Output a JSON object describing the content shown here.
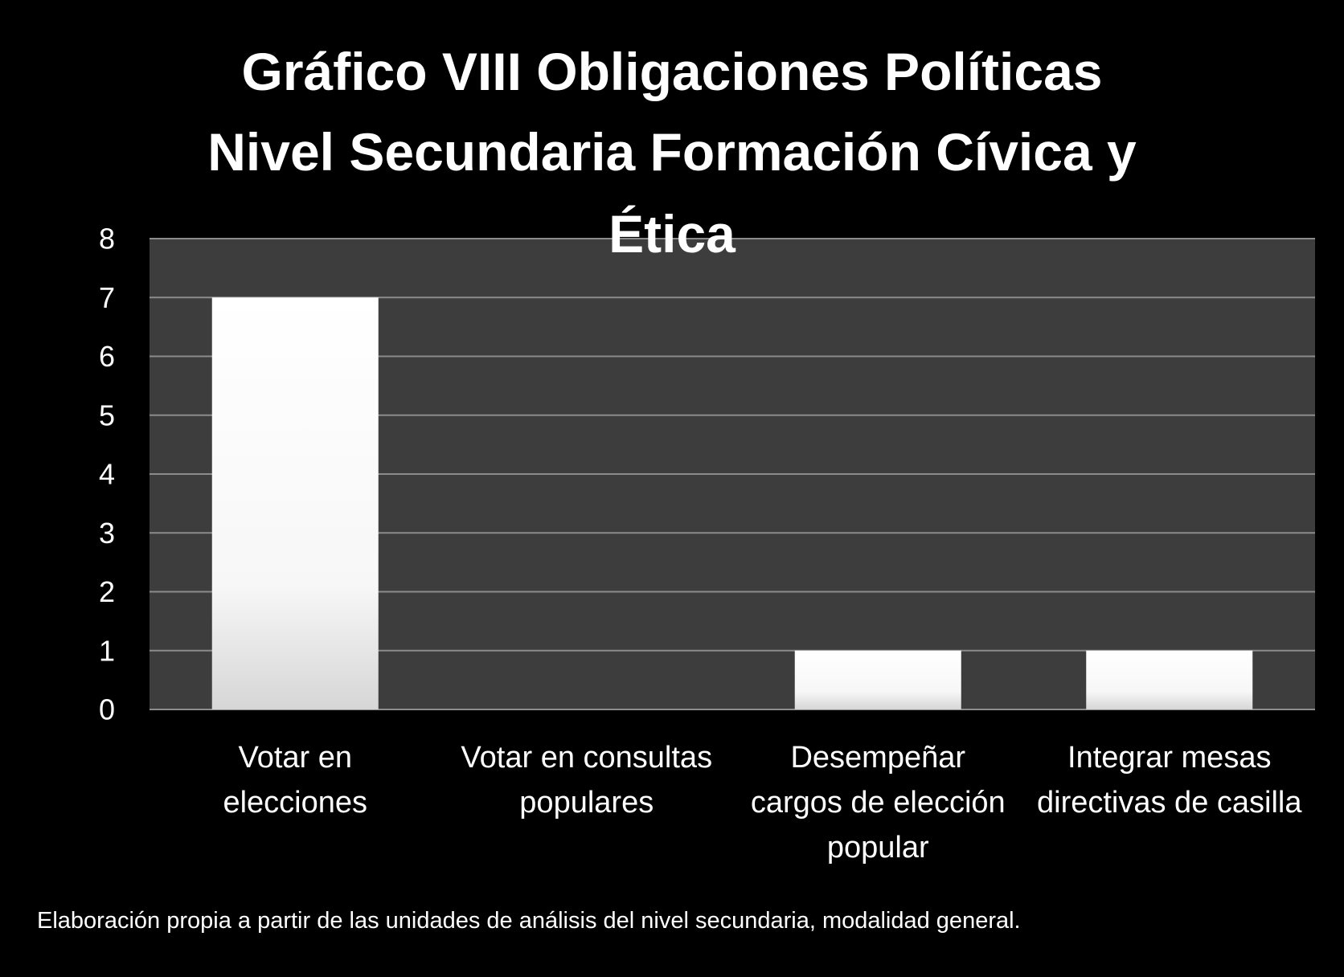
{
  "colors": {
    "background": "#000000",
    "plot_area": "#3d3d3d",
    "gridline": "#8c8c8c",
    "bar_top": "#ffffff",
    "bar_bottom": "#d6d6d6",
    "text": "#ffffff"
  },
  "chart_data": {
    "type": "bar",
    "title": "Gráfico VIII Obligaciones Políticas Nivel Secundaria Formación Cívica y Ética",
    "title_lines": [
      "Gráfico VIII Obligaciones Políticas",
      "Nivel Secundaria Formación Cívica y",
      "Ética"
    ],
    "categories": [
      "Votar en elecciones",
      "Votar en consultas populares",
      "Desempeñar cargos de elección popular",
      "Integrar mesas directivas de casilla"
    ],
    "category_label_lines": [
      [
        "Votar en",
        "elecciones"
      ],
      [
        "Votar en consultas",
        "populares"
      ],
      [
        "Desempeñar",
        "cargos de elección",
        "popular"
      ],
      [
        "Integrar mesas",
        "directivas de casilla"
      ]
    ],
    "values": [
      7,
      0,
      1,
      1
    ],
    "ylim": [
      0,
      8
    ],
    "yticks": [
      "0",
      "1",
      "2",
      "3",
      "4",
      "5",
      "6",
      "7",
      "8"
    ],
    "xlabel": "",
    "ylabel": "",
    "grid": true,
    "legend": "none"
  },
  "footer": {
    "source": "Elaboración propia a partir de las unidades de análisis del nivel secundaria, modalidad general."
  }
}
